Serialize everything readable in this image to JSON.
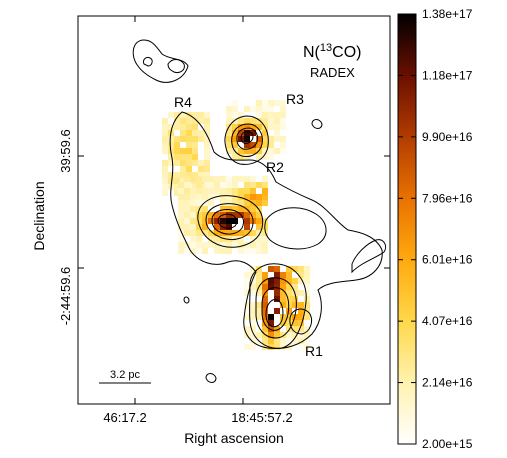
{
  "chart_data": {
    "type": "heatmap",
    "title": "N(13CO)",
    "title_parts": {
      "prefix": "N(",
      "superscript": "13",
      "suffix": "CO)"
    },
    "subtitle": "RADEX",
    "xlabel": "Right ascension",
    "ylabel": "Declination",
    "x_ticks": [
      "46:17.2",
      "18:45:57.2"
    ],
    "y_ticks": [
      "-2:44:59.6",
      "39:59.6"
    ],
    "colorbar": {
      "min": 2000000000000000.0,
      "max": 1.38e+17,
      "ticks": [
        "1.38e+17",
        "1.18e+17",
        "9.90e+16",
        "7.96e+16",
        "6.01e+16",
        "4.07e+16",
        "2.14e+16",
        "2.00e+15"
      ],
      "colormap": [
        "#ffffff",
        "#fff2b0",
        "#ffd84a",
        "#ffa90f",
        "#e87200",
        "#b23c00",
        "#6a0f00",
        "#000000"
      ]
    },
    "regions": [
      {
        "label": "R1"
      },
      {
        "label": "R2"
      },
      {
        "label": "R3"
      },
      {
        "label": "R4"
      }
    ],
    "scalebar_label": "3.2 pc",
    "contour_color": "#000000"
  }
}
